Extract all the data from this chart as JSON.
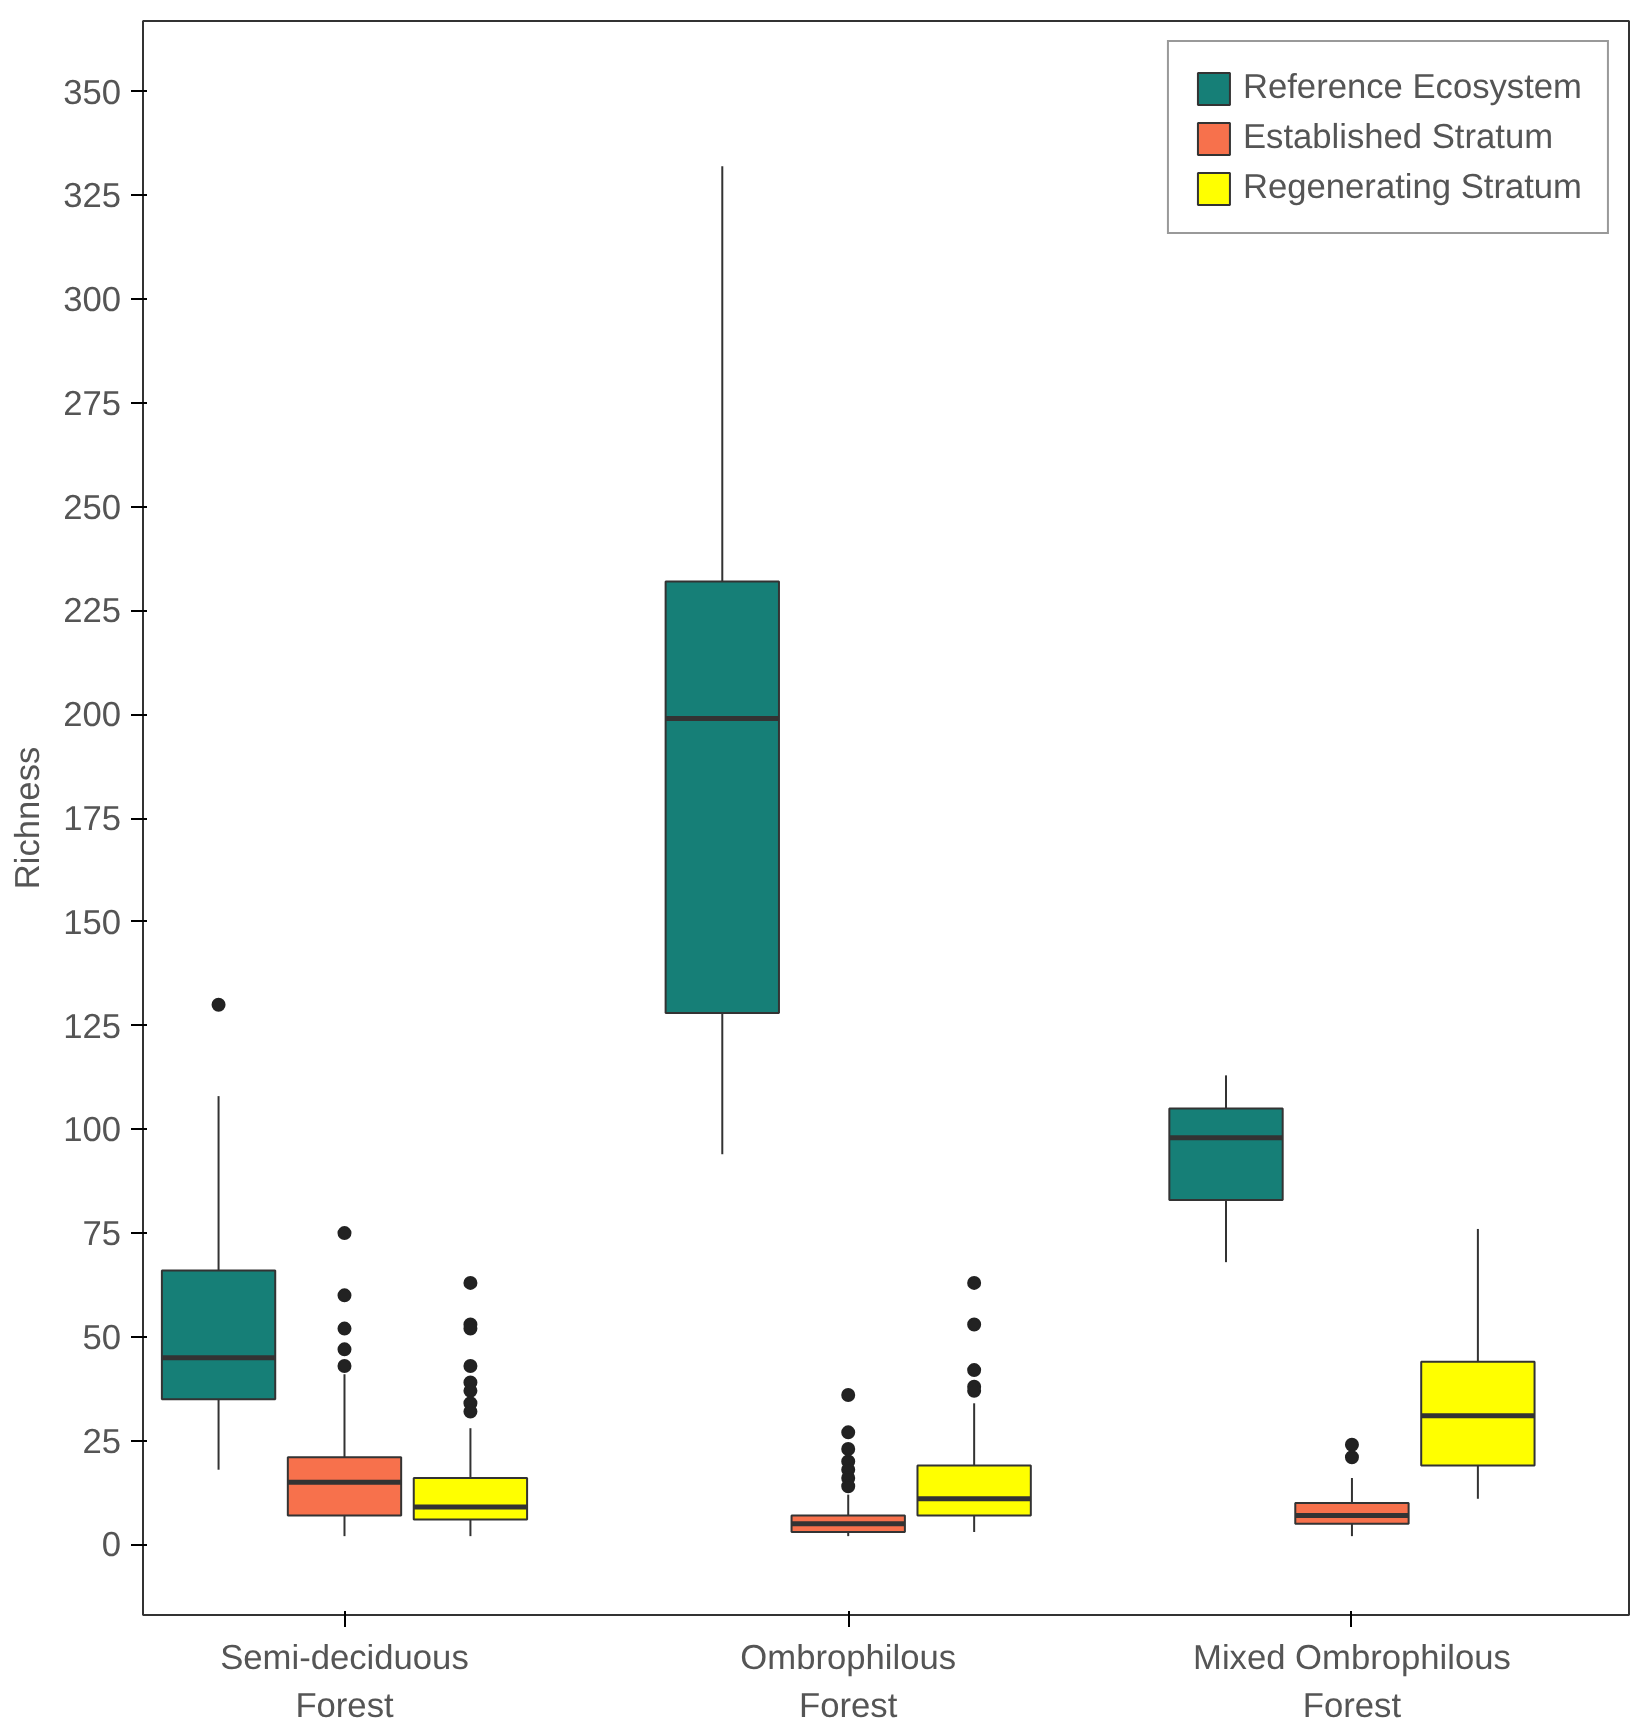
{
  "chart_data": {
    "type": "box",
    "ylabel": "Richness",
    "categories": [
      "Semi-deciduous\nForest",
      "Ombrophilous\nForest",
      "Mixed Ombrophilous\nForest"
    ],
    "ylim": [
      -17,
      367
    ],
    "yticks": [
      0,
      25,
      50,
      75,
      100,
      125,
      150,
      175,
      200,
      225,
      250,
      275,
      300,
      325,
      350
    ],
    "grid": false,
    "legend": "top right",
    "series": [
      {
        "name": "Reference Ecosystem",
        "color": "#167f77",
        "boxes": [
          {
            "low": 18,
            "q1": 35,
            "median": 45,
            "q3": 66,
            "high": 108,
            "outliers": [
              130
            ]
          },
          {
            "low": 94,
            "q1": 128,
            "median": 199,
            "q3": 232,
            "high": 332
          },
          {
            "low": 68,
            "q1": 83,
            "median": 98,
            "q3": 105,
            "high": 113
          }
        ]
      },
      {
        "name": "Established Stratum",
        "color": "#f7714c",
        "boxes": [
          {
            "low": 2,
            "q1": 7,
            "median": 15,
            "q3": 21,
            "high": 41,
            "outliers": [
              75,
              60,
              52,
              47,
              43
            ]
          },
          {
            "low": 2,
            "q1": 3,
            "median": 5,
            "q3": 7,
            "high": 12,
            "outliers": [
              36,
              27,
              23,
              20,
              18,
              16,
              14
            ]
          },
          {
            "low": 2,
            "q1": 5,
            "median": 7,
            "q3": 10,
            "high": 16,
            "outliers": [
              24,
              21
            ]
          }
        ]
      },
      {
        "name": "Regenerating Stratum",
        "color": "#ffff00",
        "boxes": [
          {
            "low": 2,
            "q1": 6,
            "median": 9,
            "q3": 16,
            "high": 28,
            "outliers": [
              63,
              53,
              52,
              43,
              39,
              37,
              34,
              32
            ]
          },
          {
            "low": 3,
            "q1": 7,
            "median": 11,
            "q3": 19,
            "high": 34,
            "outliers": [
              63,
              53,
              42,
              38,
              37
            ]
          },
          {
            "low": 11,
            "q1": 19,
            "median": 31,
            "q3": 44,
            "high": 76
          }
        ]
      }
    ]
  }
}
